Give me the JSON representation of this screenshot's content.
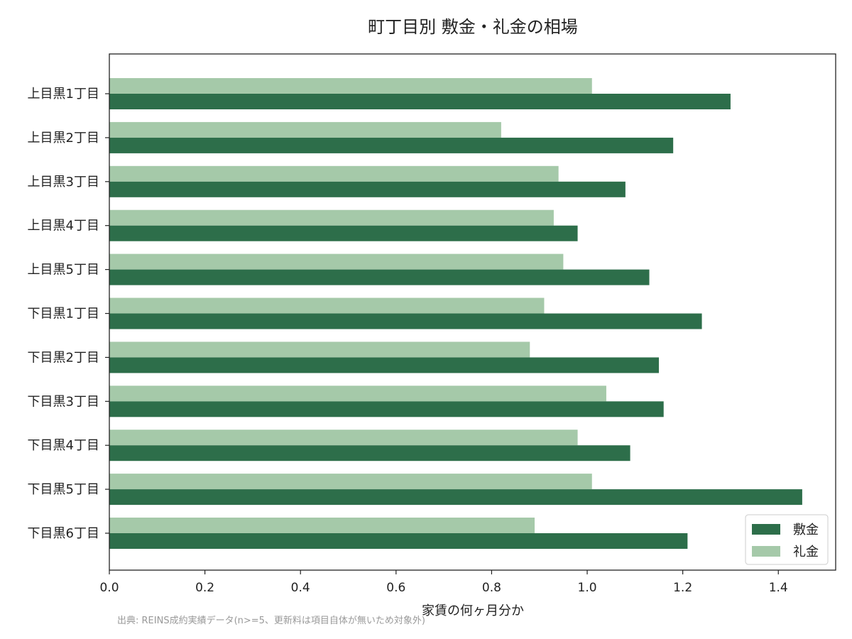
{
  "chart_data": {
    "type": "bar",
    "orientation": "horizontal",
    "title": "町丁目別 敷金・礼金の相場",
    "xlabel": "家賃の何ヶ月分か",
    "ylabel": "",
    "xlim": [
      0,
      1.52
    ],
    "xticks": [
      "0.0",
      "0.2",
      "0.4",
      "0.6",
      "0.8",
      "1.0",
      "1.2",
      "1.4"
    ],
    "grid": false,
    "legend_position": "lower-right",
    "categories": [
      "上目黒1丁目",
      "上目黒2丁目",
      "上目黒3丁目",
      "上目黒4丁目",
      "上目黒5丁目",
      "下目黒1丁目",
      "下目黒2丁目",
      "下目黒3丁目",
      "下目黒4丁目",
      "下目黒5丁目",
      "下目黒6丁目"
    ],
    "series": [
      {
        "name": "敷金",
        "color": "#2d6e4a",
        "values": [
          1.3,
          1.18,
          1.08,
          0.98,
          1.13,
          1.24,
          1.15,
          1.16,
          1.09,
          1.45,
          1.21
        ]
      },
      {
        "name": "礼金",
        "color": "#a5c9a9",
        "values": [
          1.01,
          0.82,
          0.94,
          0.93,
          0.95,
          0.91,
          0.88,
          1.04,
          0.98,
          1.01,
          0.89
        ]
      }
    ],
    "source_note": "出典: REINS成約実績データ(n>=5、更新料は項目自体が無いため対象外)"
  }
}
